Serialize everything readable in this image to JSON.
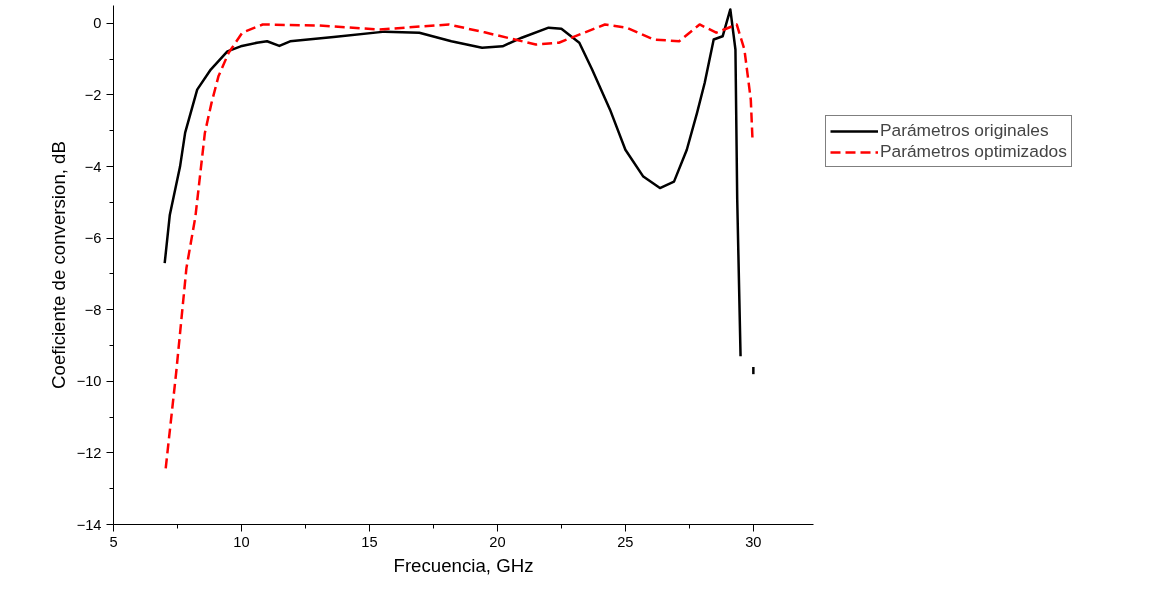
{
  "chart_data": {
    "type": "line",
    "xlabel": "Frecuencia, GHz",
    "ylabel": "Coeficiente de conversion, dB",
    "xlim": [
      5,
      32.35
    ],
    "ylim": [
      -14,
      0.5
    ],
    "xticks": [
      5,
      10,
      15,
      20,
      25,
      30
    ],
    "yticks": [
      -14,
      -12,
      -10,
      -8,
      -6,
      -4,
      -2,
      0
    ],
    "grid": false,
    "legend": "right",
    "marker": "none",
    "series": [
      {
        "name": "Parámetros originales",
        "color": "#000000",
        "line_style": "solid",
        "x": [
          7.0,
          7.2,
          7.6,
          7.8,
          8.27,
          8.8,
          9.45,
          9.97,
          10.6,
          11.0,
          11.48,
          11.9,
          13.6,
          15.6,
          16.95,
          18.2,
          19.4,
          20.2,
          20.95,
          22.0,
          22.5,
          23.2,
          23.7,
          24.4,
          25.0,
          25.7,
          26.35,
          26.9,
          27.4,
          27.8,
          28.1,
          28.45,
          28.8,
          29.1,
          29.3,
          29.37,
          29.5
        ],
        "values": [
          -6.7,
          -5.35,
          -4.0,
          -3.05,
          -1.85,
          -1.29,
          -0.78,
          -0.64,
          -0.54,
          -0.5,
          -0.63,
          -0.5,
          -0.38,
          -0.23,
          -0.26,
          -0.5,
          -0.68,
          -0.64,
          -0.4,
          -0.12,
          -0.15,
          -0.54,
          -1.29,
          -2.41,
          -3.53,
          -4.28,
          -4.6,
          -4.42,
          -3.53,
          -2.5,
          -1.66,
          -0.45,
          -0.36,
          0.39,
          -0.73,
          -4.93,
          -9.3
        ]
      },
      {
        "color": "#000000",
        "line_style": "solid",
        "x": [
          30.0,
          30.0
        ],
        "values": [
          -9.6,
          -9.8
        ]
      },
      {
        "name": "Parámetros optimizados",
        "color": "#ff0000",
        "line_style": "dashed",
        "x": [
          7.04,
          7.45,
          7.85,
          8.2,
          8.57,
          8.83,
          9.1,
          9.5,
          10.03,
          10.83,
          13.05,
          15.4,
          18.1,
          19.5,
          21.5,
          22.4,
          24.2,
          25.05,
          26.1,
          27.1,
          27.9,
          28.55,
          29.35,
          29.65,
          29.9,
          29.97
        ],
        "values": [
          -12.43,
          -9.75,
          -6.83,
          -5.4,
          -3.06,
          -2.22,
          -1.48,
          -0.82,
          -0.26,
          -0.03,
          -0.06,
          -0.17,
          -0.03,
          -0.25,
          -0.59,
          -0.54,
          -0.03,
          -0.12,
          -0.45,
          -0.5,
          -0.03,
          -0.26,
          -0.03,
          -0.73,
          -2.13,
          -3.3
        ]
      }
    ]
  }
}
